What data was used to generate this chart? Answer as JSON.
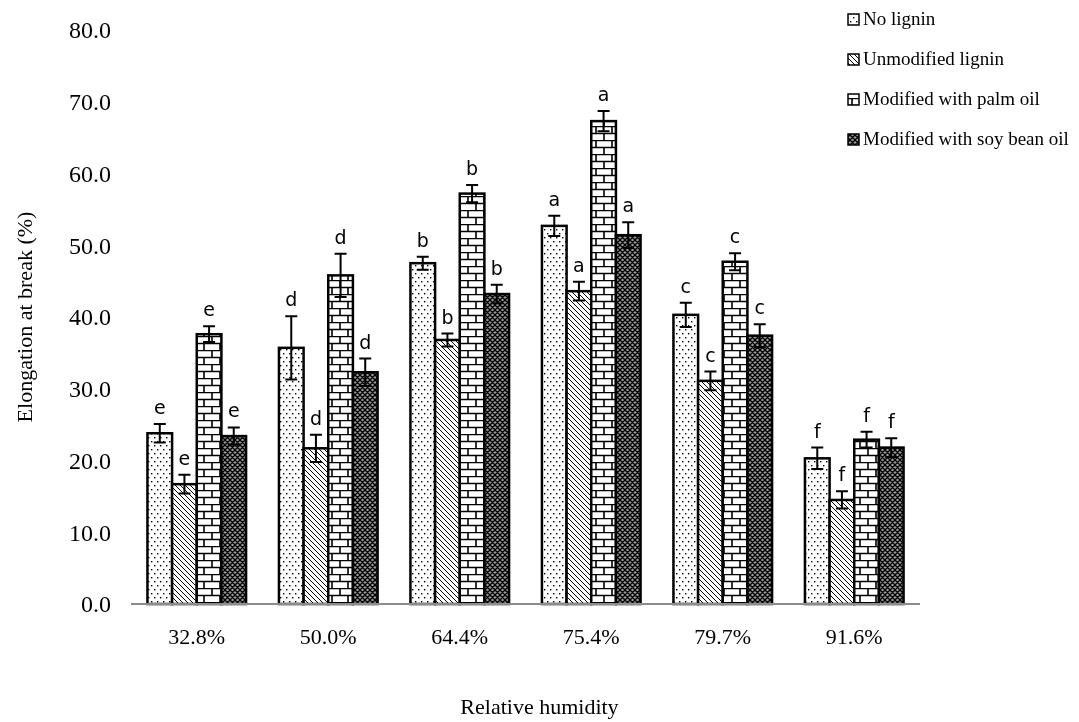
{
  "chart_data": {
    "type": "bar",
    "xlabel": "Relative humidity",
    "ylabel": "Elongation at break (%)",
    "categories": [
      "32.8%",
      "50.0%",
      "64.4%",
      "75.4%",
      "79.7%",
      "91.6%"
    ],
    "series": [
      {
        "name": "No lignin",
        "color": "#000000",
        "values": [
          23.8,
          35.7,
          47.5,
          52.7,
          40.3,
          20.3
        ],
        "errors": [
          1.3,
          4.4,
          0.9,
          1.4,
          1.7,
          1.5
        ],
        "value_labels": [
          "e",
          "d",
          "b",
          "a",
          "c",
          "f"
        ]
      },
      {
        "name": "Unmodified lignin",
        "color": "#000000",
        "values": [
          16.7,
          21.7,
          36.8,
          43.6,
          31.1,
          14.5
        ],
        "errors": [
          1.3,
          1.9,
          0.9,
          1.3,
          1.3,
          1.2
        ],
        "value_labels": [
          "e",
          "d",
          "b",
          "a",
          "c",
          "f"
        ]
      },
      {
        "name": "Modified with palm oil",
        "color": "#000000",
        "values": [
          37.6,
          45.8,
          57.2,
          67.3,
          47.7,
          22.9
        ],
        "errors": [
          1.1,
          3.0,
          1.2,
          1.4,
          1.2,
          1.1
        ],
        "value_labels": [
          "e",
          "d",
          "b",
          "a",
          "c",
          "f"
        ]
      },
      {
        "name": "Modified with soy bean oil",
        "color": "#000000",
        "values": [
          23.4,
          32.3,
          43.2,
          51.4,
          37.4,
          21.8
        ],
        "errors": [
          1.2,
          1.9,
          1.3,
          1.8,
          1.6,
          1.3
        ],
        "value_labels": [
          "e",
          "d",
          "b",
          "a",
          "c",
          "f"
        ]
      }
    ],
    "ylim": [
      0,
      80
    ],
    "yticks": [
      {
        "value": 0,
        "label": "0.0"
      },
      {
        "value": 10,
        "label": "10.0"
      },
      {
        "value": 20,
        "label": "20.0"
      },
      {
        "value": 30,
        "label": "30.0"
      },
      {
        "value": 40,
        "label": "40.0"
      },
      {
        "value": 50,
        "label": "50.0"
      },
      {
        "value": 60,
        "label": "60.0"
      },
      {
        "value": 70,
        "label": "70.0"
      },
      {
        "value": 80,
        "label": "80.0"
      }
    ],
    "legend": "top right"
  }
}
